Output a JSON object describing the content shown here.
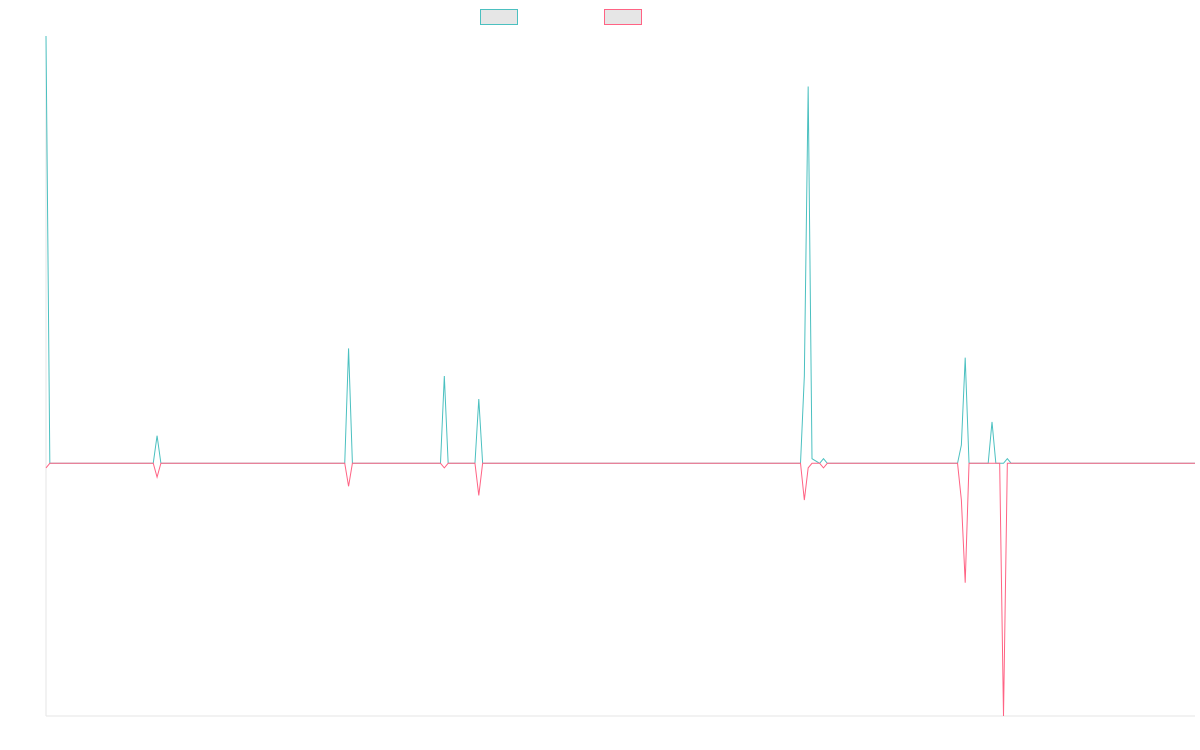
{
  "chart_data": {
    "type": "line",
    "title": "",
    "xlabel": "",
    "ylabel": "",
    "grid": false,
    "legend_position": "top",
    "x_count": 301,
    "ylim": [
      -0.55,
      0.93
    ],
    "series": [
      {
        "color": "#4bc0c0",
        "points": [
          [
            0,
            0.93
          ],
          [
            1,
            0.0
          ],
          [
            28,
            0.0
          ],
          [
            29,
            0.06
          ],
          [
            30,
            0.0
          ],
          [
            78,
            0.0
          ],
          [
            79,
            0.25
          ],
          [
            80,
            0.0
          ],
          [
            103,
            0.0
          ],
          [
            104,
            0.19
          ],
          [
            105,
            0.0
          ],
          [
            112,
            0.0
          ],
          [
            113,
            0.14
          ],
          [
            114,
            0.0
          ],
          [
            197,
            0.0
          ],
          [
            198,
            0.19
          ],
          [
            199,
            0.82
          ],
          [
            200,
            0.01
          ],
          [
            202,
            0.0
          ],
          [
            203,
            0.01
          ],
          [
            204,
            0.0
          ],
          [
            238,
            0.0
          ],
          [
            239,
            0.04
          ],
          [
            240,
            0.23
          ],
          [
            241,
            0.0
          ],
          [
            246,
            0.0
          ],
          [
            247,
            0.09
          ],
          [
            248,
            0.0
          ],
          [
            250,
            0.0
          ],
          [
            251,
            0.01
          ],
          [
            252,
            0.0
          ],
          [
            300,
            0.0
          ]
        ]
      },
      {
        "color": "#ff6384",
        "points": [
          [
            0,
            -0.01
          ],
          [
            1,
            0.0
          ],
          [
            28,
            0.0
          ],
          [
            29,
            -0.03
          ],
          [
            30,
            0.0
          ],
          [
            78,
            0.0
          ],
          [
            79,
            -0.05
          ],
          [
            80,
            0.0
          ],
          [
            103,
            0.0
          ],
          [
            104,
            -0.01
          ],
          [
            105,
            0.0
          ],
          [
            112,
            0.0
          ],
          [
            113,
            -0.07
          ],
          [
            114,
            0.0
          ],
          [
            197,
            0.0
          ],
          [
            198,
            -0.08
          ],
          [
            199,
            -0.01
          ],
          [
            200,
            0.0
          ],
          [
            202,
            0.0
          ],
          [
            203,
            -0.01
          ],
          [
            204,
            0.0
          ],
          [
            238,
            0.0
          ],
          [
            239,
            -0.08
          ],
          [
            240,
            -0.26
          ],
          [
            241,
            0.0
          ],
          [
            249,
            0.0
          ],
          [
            250,
            -0.55
          ],
          [
            251,
            0.0
          ],
          [
            300,
            0.0
          ]
        ]
      }
    ]
  }
}
